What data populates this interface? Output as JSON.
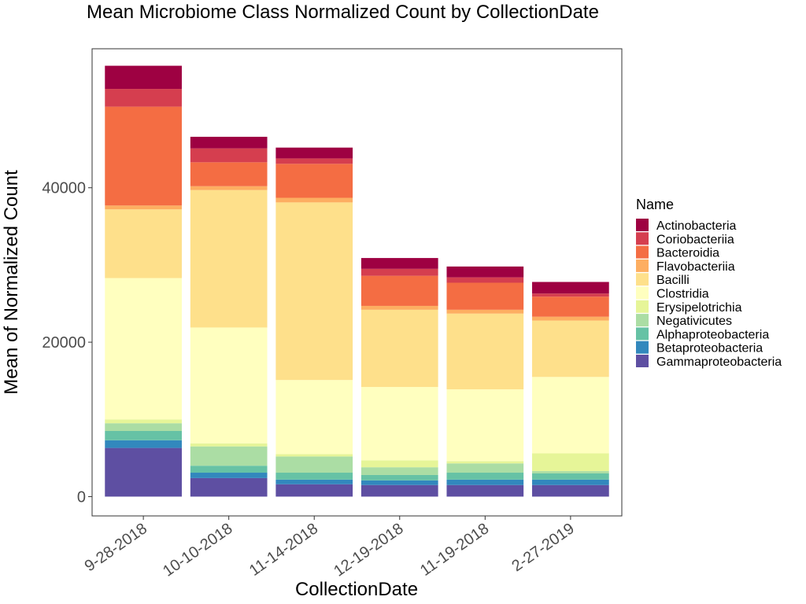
{
  "chart_data": {
    "type": "bar",
    "stacked": true,
    "title": "Mean Microbiome Class Normalized Count by CollectionDate",
    "xlabel": "CollectionDate",
    "ylabel": "Mean of Normalized Count",
    "ylim": [
      -2500,
      58000
    ],
    "yticks": [
      0,
      20000,
      40000
    ],
    "ytick_labels": [
      "0",
      "20000",
      "40000"
    ],
    "categories": [
      "9-28-2018",
      "10-10-2018",
      "11-14-2018",
      "12-19-2018",
      "11-19-2018",
      "2-27-2019"
    ],
    "legend": {
      "title": "Name",
      "position": "right"
    },
    "grid": false,
    "series": [
      {
        "name": "Gammaproteobacteria",
        "color": "#5E4FA2",
        "values": [
          6300,
          2400,
          1600,
          1500,
          1500,
          1500
        ]
      },
      {
        "name": "Betaproteobacteria",
        "color": "#3288BD",
        "values": [
          1000,
          700,
          600,
          600,
          700,
          700
        ]
      },
      {
        "name": "Alphaproteobacteria",
        "color": "#66C2A5",
        "values": [
          1200,
          900,
          900,
          700,
          900,
          800
        ]
      },
      {
        "name": "Negativicutes",
        "color": "#ABDDA4",
        "values": [
          1000,
          2500,
          2100,
          1000,
          1200,
          300
        ]
      },
      {
        "name": "Erysipelotrichia",
        "color": "#E6F598",
        "values": [
          500,
          400,
          300,
          900,
          300,
          2300
        ]
      },
      {
        "name": "Clostridia",
        "color": "#FFFFBF",
        "values": [
          18300,
          15000,
          9600,
          9500,
          9300,
          9900
        ]
      },
      {
        "name": "Bacilli",
        "color": "#FEE08B",
        "values": [
          8900,
          17800,
          23000,
          10000,
          9800,
          7300
        ]
      },
      {
        "name": "Flavobacteriia",
        "color": "#FDAE61",
        "values": [
          500,
          500,
          600,
          500,
          500,
          500
        ]
      },
      {
        "name": "Bacteroidia",
        "color": "#F46D43",
        "values": [
          12800,
          3100,
          4400,
          3900,
          3500,
          2600
        ]
      },
      {
        "name": "Coriobacteriia",
        "color": "#D53E4F",
        "values": [
          2300,
          1800,
          700,
          900,
          700,
          400
        ]
      },
      {
        "name": "Actinobacteria",
        "color": "#9E0142",
        "values": [
          3000,
          1500,
          1400,
          1400,
          1400,
          1500
        ]
      }
    ]
  }
}
